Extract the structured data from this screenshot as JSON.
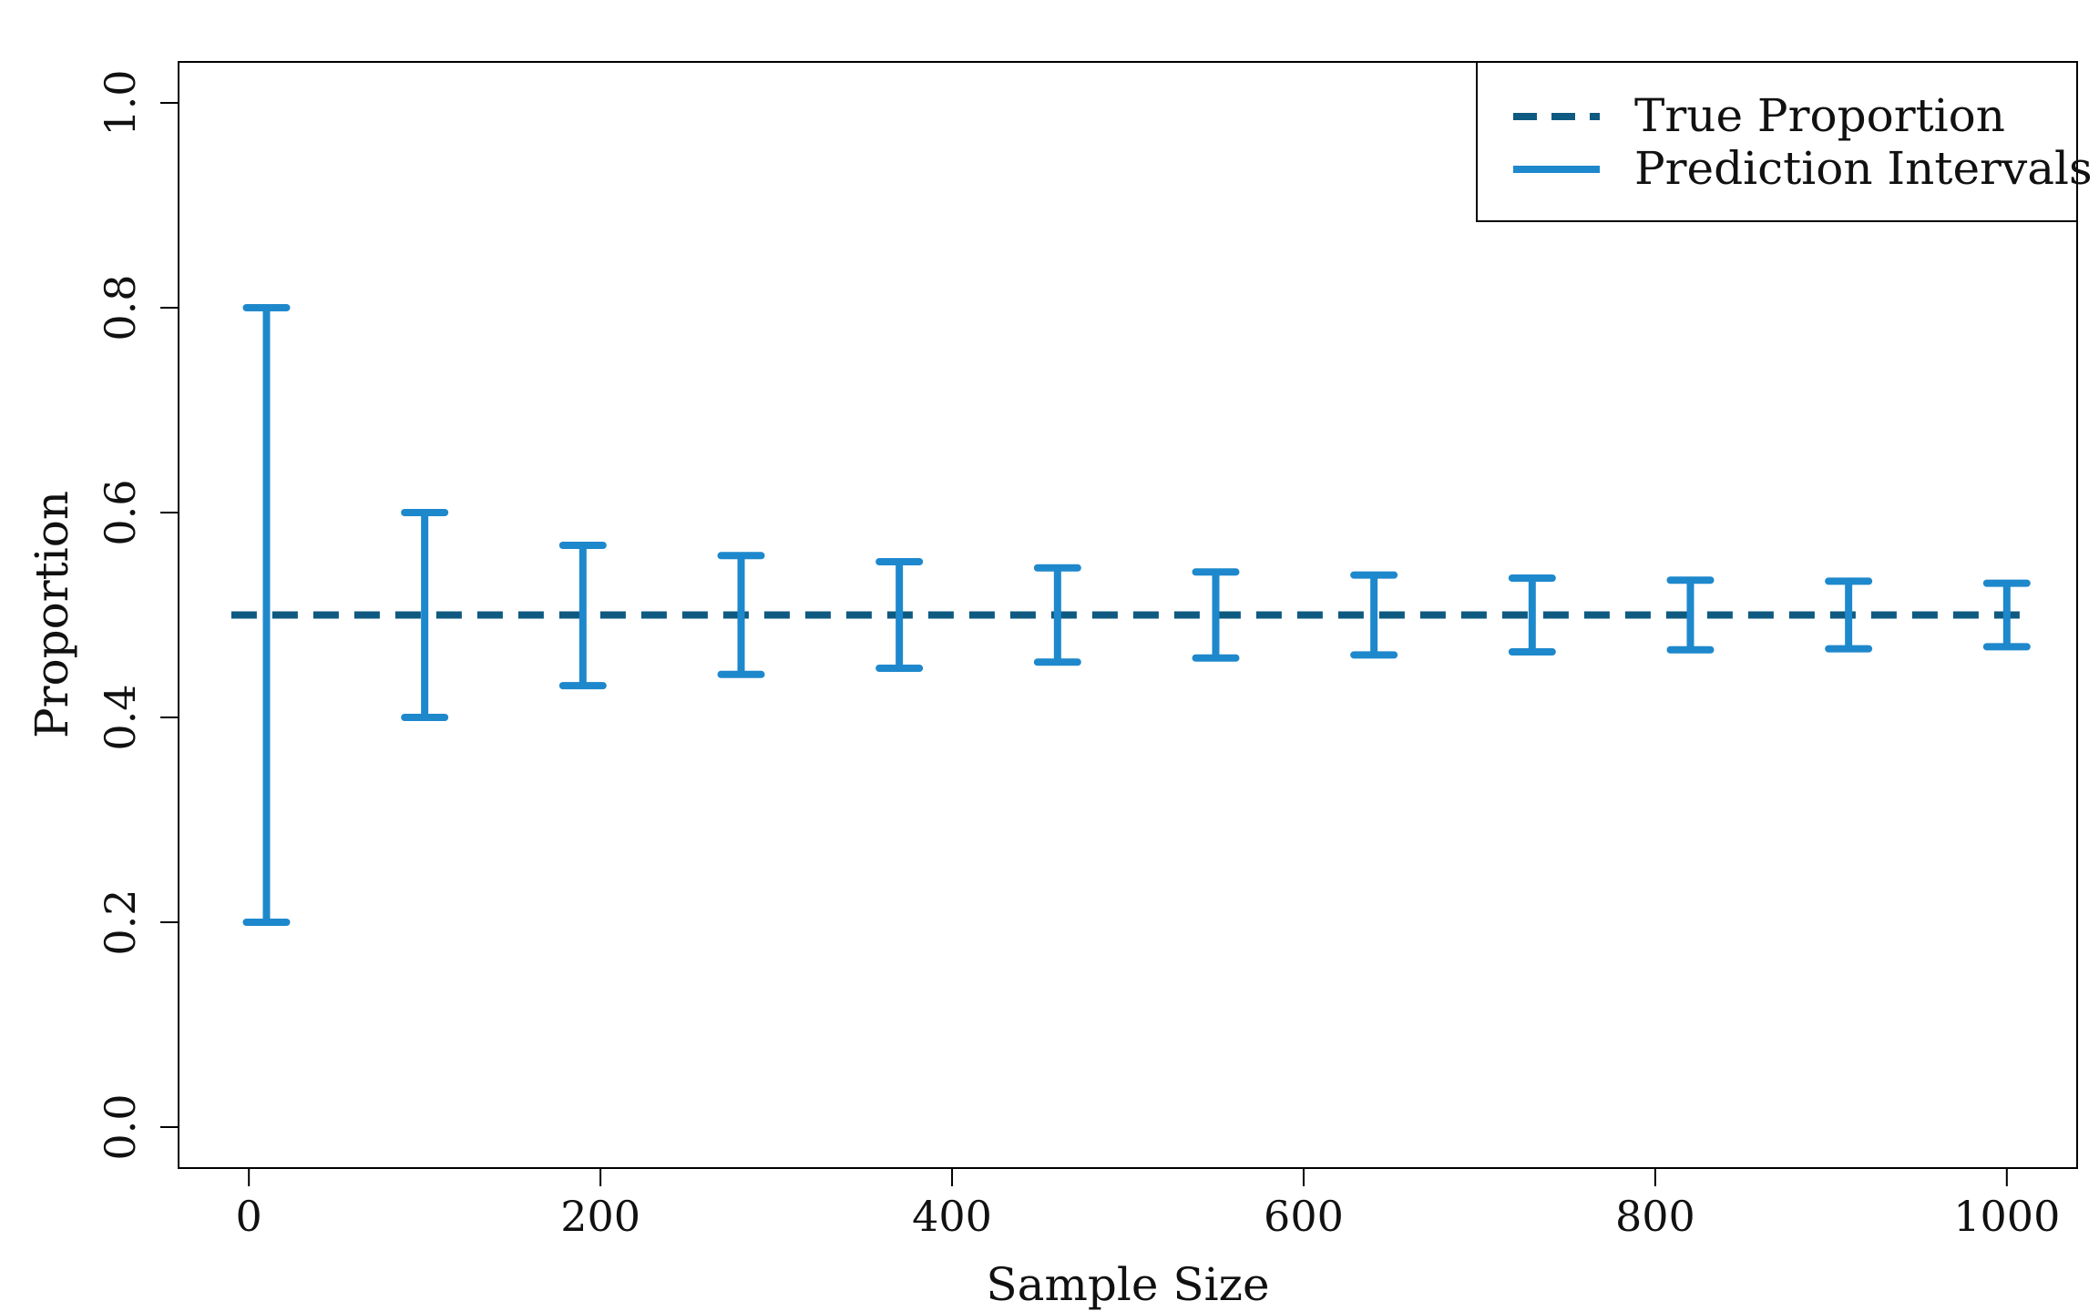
{
  "chart_data": {
    "type": "errorbar",
    "title": "",
    "xlabel": "Sample Size",
    "ylabel": "Proportion",
    "xlim": [
      -40,
      1040
    ],
    "ylim": [
      -0.04,
      1.04
    ],
    "xticks": [
      0,
      200,
      400,
      600,
      800,
      1000
    ],
    "xtick_labels": [
      "0",
      "200",
      "400",
      "600",
      "800",
      "1000"
    ],
    "yticks": [
      0.0,
      0.2,
      0.4,
      0.6,
      0.8,
      1.0
    ],
    "ytick_labels": [
      "0.0",
      "0.2",
      "0.4",
      "0.6",
      "0.8",
      "1.0"
    ],
    "grid": false,
    "legend_position": "top-right",
    "true_proportion": 0.5,
    "series": [
      {
        "name": "True Proportion",
        "style": "dashed-line",
        "color": "#0f5a80",
        "x": [
          -10,
          1010
        ],
        "values": [
          0.5,
          0.5
        ]
      },
      {
        "name": "Prediction Intervals",
        "style": "error-bars",
        "color": "#1e88cc",
        "points": [
          {
            "x": 10,
            "lower": 0.2,
            "upper": 0.8
          },
          {
            "x": 100,
            "lower": 0.4,
            "upper": 0.6
          },
          {
            "x": 190,
            "lower": 0.431,
            "upper": 0.568
          },
          {
            "x": 280,
            "lower": 0.442,
            "upper": 0.558
          },
          {
            "x": 370,
            "lower": 0.448,
            "upper": 0.552
          },
          {
            "x": 460,
            "lower": 0.454,
            "upper": 0.546
          },
          {
            "x": 550,
            "lower": 0.458,
            "upper": 0.542
          },
          {
            "x": 640,
            "lower": 0.461,
            "upper": 0.539
          },
          {
            "x": 730,
            "lower": 0.464,
            "upper": 0.536
          },
          {
            "x": 820,
            "lower": 0.466,
            "upper": 0.534
          },
          {
            "x": 910,
            "lower": 0.467,
            "upper": 0.533
          },
          {
            "x": 1000,
            "lower": 0.469,
            "upper": 0.531
          }
        ]
      }
    ]
  }
}
